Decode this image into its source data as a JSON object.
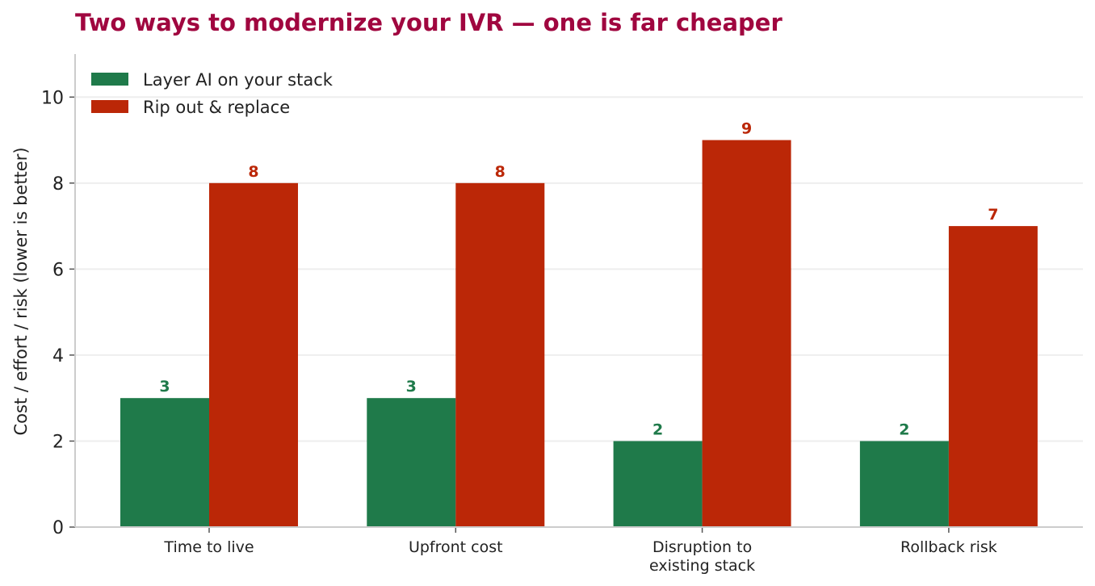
{
  "title": "Two ways to modernize your IVR — one is far cheaper",
  "colors": {
    "title": "#a0063f",
    "layer": "#1f7a4a",
    "replace": "#bb2707",
    "grid": "#eeeeee",
    "axis": "#cccccc"
  },
  "chart_data": {
    "type": "bar",
    "categories": [
      [
        "Time to live"
      ],
      [
        "Upfront cost"
      ],
      [
        "Disruption to",
        "existing stack"
      ],
      [
        "Rollback risk"
      ]
    ],
    "series": [
      {
        "name": "Layer AI on your stack",
        "values": [
          3,
          3,
          2,
          2
        ],
        "color": "#1f7a4a"
      },
      {
        "name": "Rip out & replace",
        "values": [
          8,
          8,
          9,
          7
        ],
        "color": "#bb2707"
      }
    ],
    "ylabel": "Cost / effort / risk (lower is better)",
    "xlabel": "",
    "ylim": [
      0,
      11
    ],
    "yticks": [
      0,
      2,
      4,
      6,
      8,
      10
    ],
    "grid": true,
    "legend_position": "top-left",
    "data_labels": true
  }
}
